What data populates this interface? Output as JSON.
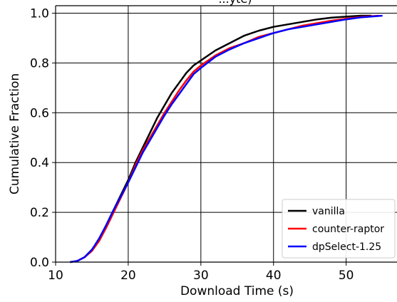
{
  "chart_data": {
    "type": "line",
    "title": "...yte)",
    "xlabel": "Download Time (s)",
    "ylabel": "Cumulative Fraction",
    "xlim": [
      10,
      57
    ],
    "ylim": [
      0,
      1.03
    ],
    "x_ticks": [
      10,
      20,
      30,
      40,
      50
    ],
    "y_ticks": [
      0.0,
      0.2,
      0.4,
      0.6,
      0.8,
      1.0
    ],
    "x_tick_labels": [
      "10",
      "20",
      "30",
      "40",
      "50"
    ],
    "y_tick_labels": [
      "0.0",
      "0.2",
      "0.4",
      "0.6",
      "0.8",
      "1.0"
    ],
    "grid": true,
    "legend_position": "bottom-right",
    "series": [
      {
        "name": "vanilla",
        "color": "#000000",
        "x": [
          12,
          13,
          14,
          15,
          16,
          17,
          18,
          19,
          20,
          21,
          22,
          23,
          24,
          25,
          26,
          27,
          28,
          29,
          30,
          32,
          34,
          36,
          38,
          40,
          42,
          44,
          46,
          48,
          50,
          52,
          53.5
        ],
        "y": [
          0.0,
          0.005,
          0.02,
          0.05,
          0.09,
          0.15,
          0.21,
          0.27,
          0.33,
          0.4,
          0.46,
          0.52,
          0.58,
          0.63,
          0.68,
          0.72,
          0.76,
          0.79,
          0.81,
          0.85,
          0.88,
          0.91,
          0.93,
          0.945,
          0.955,
          0.965,
          0.975,
          0.982,
          0.986,
          0.99,
          0.99
        ]
      },
      {
        "name": "counter-raptor",
        "color": "#ff0000",
        "x": [
          12,
          13,
          14,
          15,
          16,
          17,
          18,
          19,
          20,
          21,
          22,
          23,
          24,
          25,
          26,
          27,
          28,
          29,
          30,
          32,
          34,
          36,
          38,
          40,
          42,
          44,
          46,
          48,
          50,
          52,
          54.5
        ],
        "y": [
          0.0,
          0.005,
          0.02,
          0.045,
          0.085,
          0.14,
          0.2,
          0.26,
          0.32,
          0.39,
          0.45,
          0.5,
          0.55,
          0.6,
          0.645,
          0.69,
          0.73,
          0.765,
          0.79,
          0.83,
          0.86,
          0.88,
          0.905,
          0.92,
          0.935,
          0.95,
          0.96,
          0.97,
          0.978,
          0.985,
          0.99
        ]
      },
      {
        "name": "dpSelect-1.25",
        "color": "#0000ff",
        "x": [
          12,
          13,
          14,
          15,
          16,
          17,
          18,
          19,
          20,
          21,
          22,
          23,
          24,
          25,
          26,
          27,
          28,
          29,
          30,
          32,
          34,
          36,
          38,
          40,
          42,
          44,
          46,
          48,
          50,
          52,
          55
        ],
        "y": [
          0.0,
          0.005,
          0.02,
          0.05,
          0.095,
          0.15,
          0.21,
          0.265,
          0.32,
          0.38,
          0.44,
          0.49,
          0.54,
          0.59,
          0.635,
          0.675,
          0.715,
          0.755,
          0.78,
          0.825,
          0.855,
          0.88,
          0.9,
          0.92,
          0.935,
          0.945,
          0.955,
          0.965,
          0.975,
          0.983,
          0.99
        ]
      }
    ]
  }
}
